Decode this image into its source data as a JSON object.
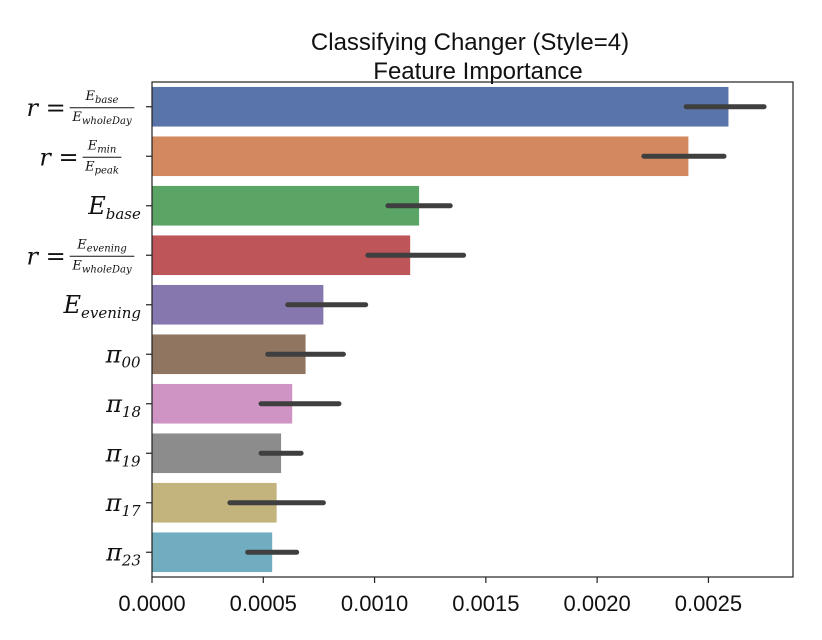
{
  "chart_data": {
    "type": "bar",
    "orientation": "horizontal",
    "title": [
      "Classifying Changer (Style=4)",
      "Feature Importance"
    ],
    "xlim": [
      0,
      0.00288
    ],
    "xticks": [
      0,
      0.0005,
      0.001,
      0.0015,
      0.002,
      0.0025
    ],
    "xtick_labels": [
      "0.0000",
      "0.0005",
      "0.0010",
      "0.0015",
      "0.0020",
      "0.0025"
    ],
    "grid": false,
    "categories": [
      {
        "label_type": "frac",
        "prefix": "r =",
        "num_base": "E",
        "num_sub": "base",
        "den_base": "E",
        "den_sub": "wholeDay"
      },
      {
        "label_type": "frac",
        "prefix": "r =",
        "num_base": "E",
        "num_sub": "min",
        "den_base": "E",
        "den_sub": "peak"
      },
      {
        "label_type": "sub",
        "base": "E",
        "sub": "base"
      },
      {
        "label_type": "frac",
        "prefix": "r =",
        "num_base": "E",
        "num_sub": "evening",
        "den_base": "E",
        "den_sub": "wholeDay"
      },
      {
        "label_type": "sub",
        "base": "E",
        "sub": "evening"
      },
      {
        "label_type": "sub",
        "base": "π",
        "sub": "00"
      },
      {
        "label_type": "sub",
        "base": "π",
        "sub": "18"
      },
      {
        "label_type": "sub",
        "base": "π",
        "sub": "19"
      },
      {
        "label_type": "sub",
        "base": "π",
        "sub": "17"
      },
      {
        "label_type": "sub",
        "base": "π",
        "sub": "23"
      }
    ],
    "values": [
      0.00259,
      0.00241,
      0.0012,
      0.00116,
      0.00077,
      0.00069,
      0.00063,
      0.00058,
      0.00056,
      0.00054
    ],
    "error_ranges": [
      [
        0.0024,
        0.00275
      ],
      [
        0.00221,
        0.00257
      ],
      [
        0.00106,
        0.00134
      ],
      [
        0.00097,
        0.0014
      ],
      [
        0.00061,
        0.00096
      ],
      [
        0.00052,
        0.00086
      ],
      [
        0.00049,
        0.00084
      ],
      [
        0.00049,
        0.00067
      ],
      [
        0.00035,
        0.00077
      ],
      [
        0.00043,
        0.00065
      ]
    ],
    "colors": [
      "#5874a8",
      "#d3895f",
      "#5aa565",
      "#bd5559",
      "#8678ae",
      "#907660",
      "#d094c4",
      "#8c8c8c",
      "#c3b37c",
      "#70adc1"
    ],
    "error_color": "#3f3f3f"
  }
}
